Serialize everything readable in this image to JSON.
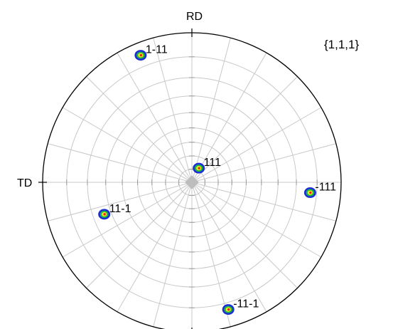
{
  "chart_data": {
    "type": "scatter",
    "projection": "stereographic pole figure",
    "plane_family": "{1,1,1}",
    "axis_labels": {
      "top": "RD",
      "left": "TD"
    },
    "grid": true,
    "grid_polar_step_deg": 10,
    "grid_azimuth_step_deg": 15,
    "legend": "none",
    "colors": {
      "outline": "#000000",
      "grid": "#c8c8c8",
      "pole_outer": "#1c2fd6",
      "pole_mid": "#1fb83a",
      "pole_inner": "#f2e62a",
      "pole_core": "#e0261e"
    },
    "poles": [
      {
        "label": "1-11",
        "tilt_deg": 85,
        "azimuth_deg": 112
      },
      {
        "label": "111",
        "tilt_deg": 12,
        "azimuth_deg": 64
      },
      {
        "label": "-111",
        "tilt_deg": 77,
        "azimuth_deg": -5
      },
      {
        "label": "11-1",
        "tilt_deg": 64,
        "azimuth_deg": 200
      },
      {
        "label": "-11-1",
        "tilt_deg": 83,
        "azimuth_deg": -74
      }
    ]
  }
}
